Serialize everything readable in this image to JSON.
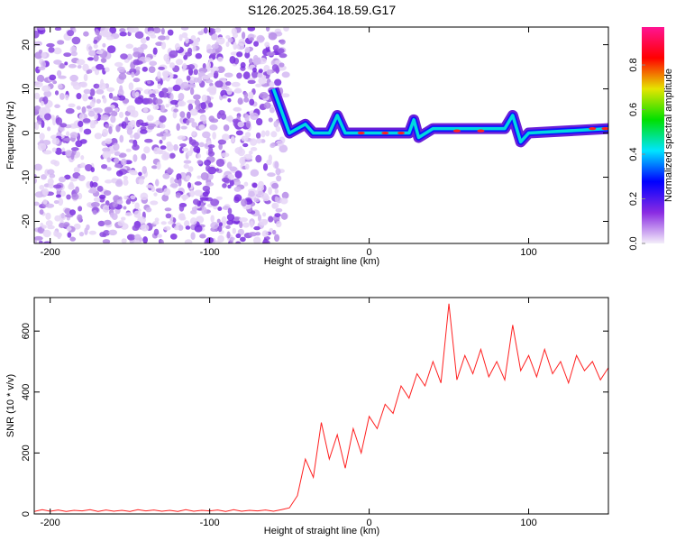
{
  "title": "S126.2025.364.18.59.G17",
  "chart_data": [
    {
      "type": "heatmap",
      "title": "S126.2025.364.18.59.G17",
      "xlabel": "Height of straight line (km)",
      "ylabel": "Frequency (Hz)",
      "xlim": [
        -210,
        150
      ],
      "ylim": [
        -25,
        24
      ],
      "xticks": [
        -200,
        -100,
        0,
        100
      ],
      "yticks": [
        -20,
        -10,
        0,
        10,
        20
      ],
      "noise_region_x": [
        -210,
        -52
      ],
      "ridge": {
        "x": [
          -60,
          -50,
          -45,
          -40,
          -35,
          -25,
          -20,
          -15,
          0,
          25,
          28,
          31,
          40,
          85,
          90,
          95,
          100,
          150
        ],
        "freq": [
          10,
          0,
          1,
          2,
          0,
          0,
          4,
          0,
          0,
          0,
          3,
          -1,
          1,
          1,
          4,
          -2,
          0,
          1
        ]
      },
      "colorbar": {
        "label": "Normalized spectral amplitude",
        "range": [
          0,
          0.97
        ],
        "ticks": [
          "0.0",
          "0.2",
          "0.4",
          "0.6",
          "0.8"
        ],
        "colors": [
          "#f4eefa",
          "#8a2be2",
          "#0000ff",
          "#00e5ff",
          "#00e000",
          "#e5e500",
          "#ff0000",
          "#ff1493"
        ]
      }
    },
    {
      "type": "line",
      "xlabel": "Height of straight line (km)",
      "ylabel": "SNR (10 * v/v)",
      "xlim": [
        -210,
        150
      ],
      "ylim": [
        0,
        710
      ],
      "xticks": [
        -200,
        -100,
        0,
        100
      ],
      "yticks": [
        0,
        200,
        400,
        600
      ],
      "color": "#ff2020",
      "x_start": -210,
      "x_step": 5,
      "values": [
        8,
        14,
        9,
        13,
        8,
        12,
        10,
        14,
        8,
        13,
        9,
        12,
        8,
        14,
        10,
        13,
        9,
        12,
        8,
        14,
        9,
        12,
        10,
        13,
        8,
        14,
        9,
        12,
        10,
        13,
        9,
        14,
        20,
        60,
        180,
        120,
        300,
        180,
        260,
        150,
        280,
        200,
        320,
        280,
        360,
        330,
        420,
        380,
        460,
        420,
        500,
        430,
        690,
        440,
        520,
        460,
        540,
        450,
        500,
        440,
        620,
        470,
        520,
        450,
        540,
        460,
        500,
        430,
        520,
        470,
        500,
        440,
        480
      ]
    }
  ]
}
